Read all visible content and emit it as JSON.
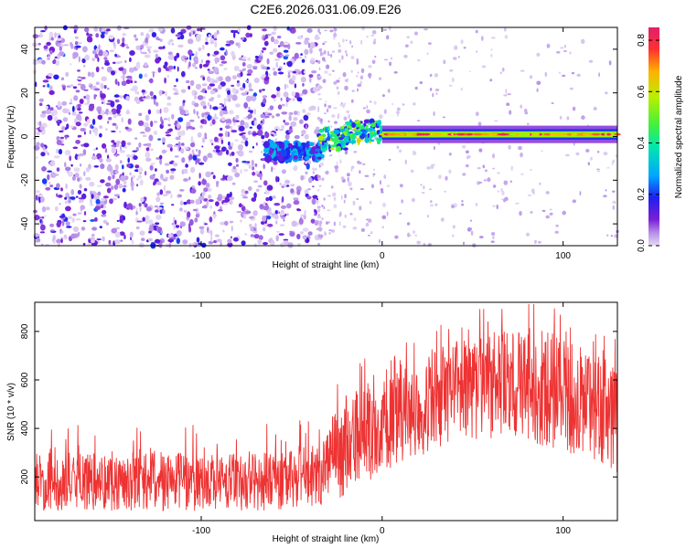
{
  "figure": {
    "title": "C2E6.2026.031.06.09.E26"
  },
  "chart_data": [
    {
      "type": "heatmap",
      "xlabel": "Height of straight line (km)",
      "ylabel": "Frequency (Hz)",
      "xlim": [
        -192,
        130
      ],
      "ylim": [
        -50,
        50
      ],
      "x_ticks": [
        -100,
        0,
        100
      ],
      "y_ticks": [
        -40,
        -20,
        0,
        20,
        40
      ],
      "features": [
        {
          "name": "scattered-noise",
          "x_range": [
            -192,
            -35
          ],
          "y_range": [
            -50,
            50
          ],
          "amplitude": 0.15
        },
        {
          "name": "faint-noise",
          "x_range": [
            -35,
            130
          ],
          "y_range": [
            -50,
            50
          ],
          "amplitude": 0.05
        },
        {
          "name": "weak-signal",
          "x_range": [
            -65,
            -32
          ],
          "y_center": -7,
          "amplitude": 0.25
        },
        {
          "name": "transition",
          "x_range": [
            -35,
            0
          ],
          "y_center": 2,
          "amplitude": 0.45
        },
        {
          "name": "tone-line",
          "x_range": [
            0,
            130
          ],
          "y_center": 1,
          "amplitude": 0.55,
          "peak_amplitude": 0.85
        }
      ],
      "colorbar": {
        "label": "Normalized spectral amplitude",
        "range": [
          0,
          0.85
        ],
        "ticks": [
          0,
          0.2,
          0.4,
          0.6,
          0.8
        ]
      }
    },
    {
      "type": "line",
      "color": "#EE3333",
      "xlabel": "Height of straight line (km)",
      "ylabel": "SNR (10 * v/v)",
      "xlim": [
        -192,
        130
      ],
      "ylim": [
        20,
        920
      ],
      "x_ticks": [
        -100,
        0,
        100
      ],
      "y_ticks": [
        200,
        400,
        600,
        800
      ],
      "envelope": {
        "x": [
          -192,
          -150,
          -100,
          -60,
          -40,
          -30,
          -20,
          -10,
          0,
          20,
          40,
          60,
          80,
          100,
          115,
          130
        ],
        "lower": [
          60,
          60,
          60,
          60,
          70,
          90,
          120,
          160,
          220,
          280,
          340,
          360,
          350,
          300,
          250,
          220
        ],
        "upper": [
          300,
          300,
          300,
          300,
          330,
          420,
          520,
          580,
          600,
          680,
          760,
          800,
          820,
          780,
          720,
          660
        ]
      }
    }
  ]
}
